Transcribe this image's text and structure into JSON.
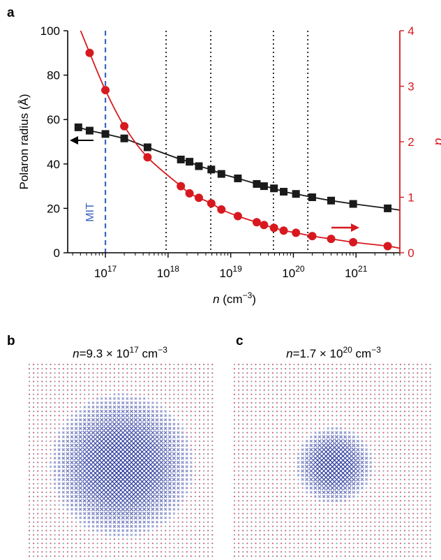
{
  "panels": {
    "a": {
      "label": "a"
    },
    "b": {
      "label": "b",
      "title_prefix": "n",
      "title_rest": "=9.3 × 10",
      "title_exp": "17",
      "title_unit": " cm",
      "title_unit_exp": "−3",
      "lattice_shown": "polaron density on crystal lattice",
      "radius_fraction": 0.78
    },
    "c": {
      "label": "c",
      "title_prefix": "n",
      "title_rest": "=1.7 × 10",
      "title_exp": "20",
      "title_unit": " cm",
      "title_unit_exp": "−3",
      "lattice_shown": "polaron density on crystal lattice",
      "radius_fraction": 0.4
    }
  },
  "colors": {
    "black_series": "#1a1a1a",
    "red_series": "#d7191f",
    "mit_line": "#3a64c0",
    "lattice_blue": "#2b3a9c",
    "lattice_red": "#d06070",
    "lattice_grey": "#9aa0b8"
  },
  "chart_data": {
    "type": "scatter",
    "xlabel_var": "n",
    "xlabel_unit": " (cm",
    "xlabel_unit_exp": "−3",
    "xlabel_close": ")",
    "ylabel": "Polaron radius (Å)",
    "y2label": "α",
    "xscale": "log",
    "xlim": [
      2.5e+16,
      5e+21
    ],
    "ylim": [
      0,
      100
    ],
    "y2lim": [
      0,
      4
    ],
    "x_ticks": [
      {
        "value": 1e+17,
        "base": "10",
        "exp": "17"
      },
      {
        "value": 1e+18,
        "base": "10",
        "exp": "18"
      },
      {
        "value": 1e+19,
        "base": "10",
        "exp": "19"
      },
      {
        "value": 1e+20,
        "base": "10",
        "exp": "20"
      },
      {
        "value": 1e+21,
        "base": "10",
        "exp": "21"
      }
    ],
    "y_ticks": [
      "0",
      "20",
      "40",
      "60",
      "80",
      "100"
    ],
    "y2_ticks": [
      "0",
      "1",
      "2",
      "3",
      "4"
    ],
    "mit": {
      "label": "MIT",
      "x": 1e+17
    },
    "vertical_dotted_lines": [
      9.3e+17,
      4.8e+18,
      4.8e+19,
      1.7e+20
    ],
    "series": [
      {
        "name": "Polaron radius",
        "axis": "left",
        "marker": "square",
        "x": [
          3.7e+16,
          5.6e+16,
          1e+17,
          2e+17,
          4.7e+17,
          1.6e+18,
          2.2e+18,
          3.1e+18,
          4.9e+18,
          7.1e+18,
          1.3e+19,
          2.6e+19,
          3.4e+19,
          4.9e+19,
          7e+19,
          1.1e+20,
          2e+20,
          4e+20,
          9e+20,
          3.2e+21
        ],
        "values": [
          56.5,
          55,
          53.5,
          51.5,
          47.5,
          42,
          41,
          39,
          37.5,
          35.5,
          33.5,
          31,
          30,
          29,
          27.5,
          26.5,
          25,
          23.5,
          22,
          20
        ]
      },
      {
        "name": "α",
        "axis": "right",
        "marker": "circle",
        "x": [
          5.6e+16,
          1e+17,
          2e+17,
          4.7e+17,
          1.6e+18,
          2.2e+18,
          3.1e+18,
          4.9e+18,
          7.1e+18,
          1.3e+19,
          2.6e+19,
          3.4e+19,
          4.9e+19,
          7e+19,
          1.1e+20,
          2e+20,
          4e+20,
          9e+20,
          3.2e+21
        ],
        "values": [
          3.6,
          2.93,
          2.28,
          1.72,
          1.2,
          1.07,
          0.99,
          0.89,
          0.78,
          0.66,
          0.55,
          0.5,
          0.45,
          0.4,
          0.36,
          0.3,
          0.25,
          0.19,
          0.12
        ]
      }
    ],
    "grid": false
  }
}
